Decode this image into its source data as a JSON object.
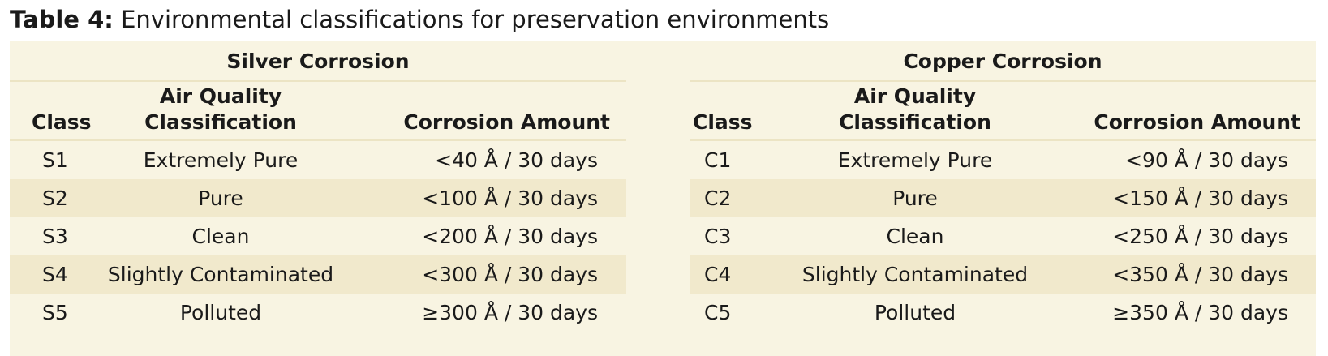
{
  "caption": {
    "label": "Table 4:",
    "text": "Environmental classifications for preservation environments"
  },
  "columns": {
    "class": "Class",
    "air_quality": "Air Quality\nClassification",
    "amount": "Corrosion Amount"
  },
  "silver": {
    "title": "Silver Corrosion",
    "rows": [
      {
        "class": "S1",
        "air": "Extremely Pure",
        "amount": "<40 Å / 30 days"
      },
      {
        "class": "S2",
        "air": "Pure",
        "amount": "<100 Å / 30 days"
      },
      {
        "class": "S3",
        "air": "Clean",
        "amount": "<200 Å / 30 days"
      },
      {
        "class": "S4",
        "air": "Slightly Contaminated",
        "amount": "<300 Å / 30 days"
      },
      {
        "class": "S5",
        "air": "Polluted",
        "amount": "≥300 Å / 30 days"
      }
    ]
  },
  "copper": {
    "title": "Copper Corrosion",
    "rows": [
      {
        "class": "C1",
        "air": "Extremely Pure",
        "amount": "<90 Å / 30 days"
      },
      {
        "class": "C2",
        "air": "Pure",
        "amount": "<150 Å / 30 days"
      },
      {
        "class": "C3",
        "air": "Clean",
        "amount": "<250 Å / 30 days"
      },
      {
        "class": "C4",
        "air": "Slightly Contaminated",
        "amount": "<350 Å / 30 days"
      },
      {
        "class": "C5",
        "air": "Polluted",
        "amount": "≥350 Å / 30 days"
      }
    ]
  },
  "colors": {
    "panel": "#f8f4e2",
    "alt_row": "#f1e9cc",
    "rule": "#ece4c4",
    "text": "#1a1a1a"
  }
}
